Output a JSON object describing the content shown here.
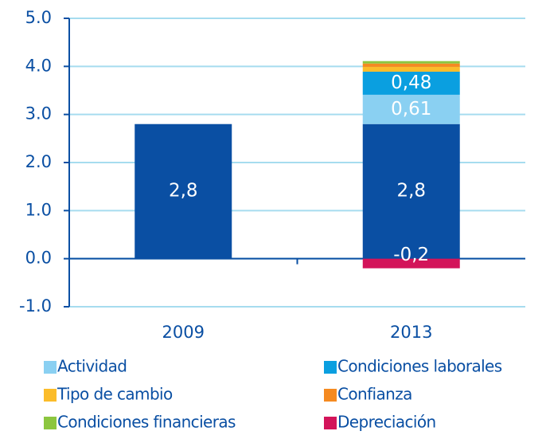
{
  "chart_data": {
    "type": "stacked-bar",
    "categories": [
      "2009",
      "2013"
    ],
    "series": [
      {
        "color": "#0a4fa3",
        "values": [
          2.8,
          2.8
        ],
        "value_labels": [
          "2,8",
          "2,8"
        ]
      },
      {
        "name": "Actividad",
        "color": "#8ad0f2",
        "values": [
          null,
          0.61
        ],
        "value_labels": [
          null,
          "0,61"
        ]
      },
      {
        "name": "Condiciones laborales",
        "color": "#0a9fe0",
        "values": [
          null,
          0.48
        ],
        "value_labels": [
          null,
          "0,48"
        ]
      },
      {
        "name": "Tipo de cambio",
        "color": "#fbbc2a",
        "values": [
          null,
          0.1
        ]
      },
      {
        "name": "Confianza",
        "color": "#f58a20",
        "values": [
          null,
          0.07
        ]
      },
      {
        "name": "Condiciones financieras",
        "color": "#8cc63f",
        "values": [
          null,
          0.05
        ]
      },
      {
        "name": "Depreciación",
        "color": "#d3145a",
        "values": [
          null,
          -0.2
        ],
        "value_labels": [
          null,
          "-0,2"
        ]
      }
    ],
    "ylim": [
      -1,
      5
    ],
    "yticks": [
      {
        "value": -1,
        "label": "-1.0"
      },
      {
        "value": 0,
        "label": "0.0"
      },
      {
        "value": 1,
        "label": "1.0"
      },
      {
        "value": 2,
        "label": "2.0"
      },
      {
        "value": 3,
        "label": "3.0"
      },
      {
        "value": 4,
        "label": "4.0"
      },
      {
        "value": 5,
        "label": "5.0"
      }
    ],
    "grid": true
  }
}
